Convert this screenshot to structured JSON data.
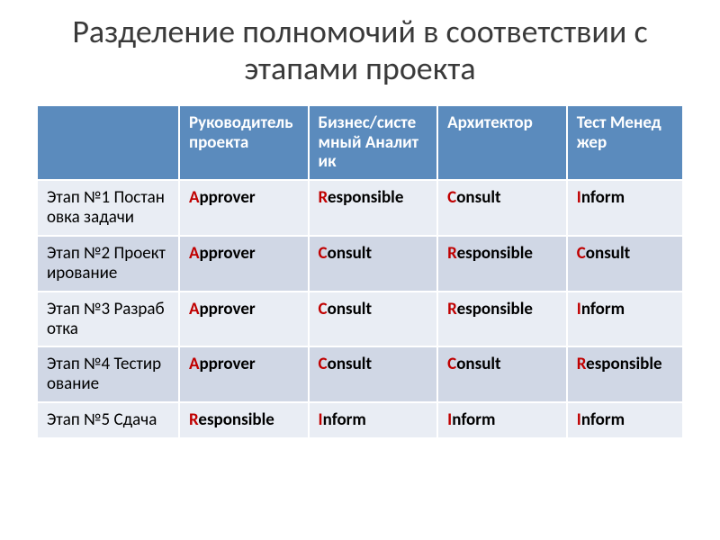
{
  "title": "Разделение полномочий в соответствии с этапами проекта",
  "columns": [
    "",
    "Руководитель проекта",
    "Бизнес/системный Аналитик",
    "Архитектор",
    "Тест Менеджер"
  ],
  "rows": [
    {
      "stage": "Этап №1 Постановка задачи",
      "cells": [
        "Approver",
        "Responsible",
        "Consult",
        "Inform"
      ]
    },
    {
      "stage": "Этап №2 Проектирование",
      "cells": [
        "Approver",
        "Consult",
        "Responsible",
        "Consult"
      ]
    },
    {
      "stage": "Этап №3 Разработка",
      "cells": [
        "Approver",
        "Consult",
        "Responsible",
        "Inform"
      ]
    },
    {
      "stage": "Этап №4 Тестирование",
      "cells": [
        "Approver",
        "Consult",
        "Consult",
        "Responsible"
      ]
    },
    {
      "stage": "Этап №5 Сдача",
      "cells": [
        "Responsible",
        "Inform",
        "Inform",
        "Inform"
      ]
    }
  ],
  "style": {
    "header_bg": "#5b8bbd",
    "header_fg": "#ffffff",
    "row_light_bg": "#e9edf4",
    "row_dark_bg": "#d0d7e5",
    "accent_color": "#c00000",
    "title_color": "#3a3a3a",
    "border_color": "#ffffff",
    "title_fontsize": 36,
    "cell_fontsize": 19,
    "cell_fontweight": "bold"
  }
}
